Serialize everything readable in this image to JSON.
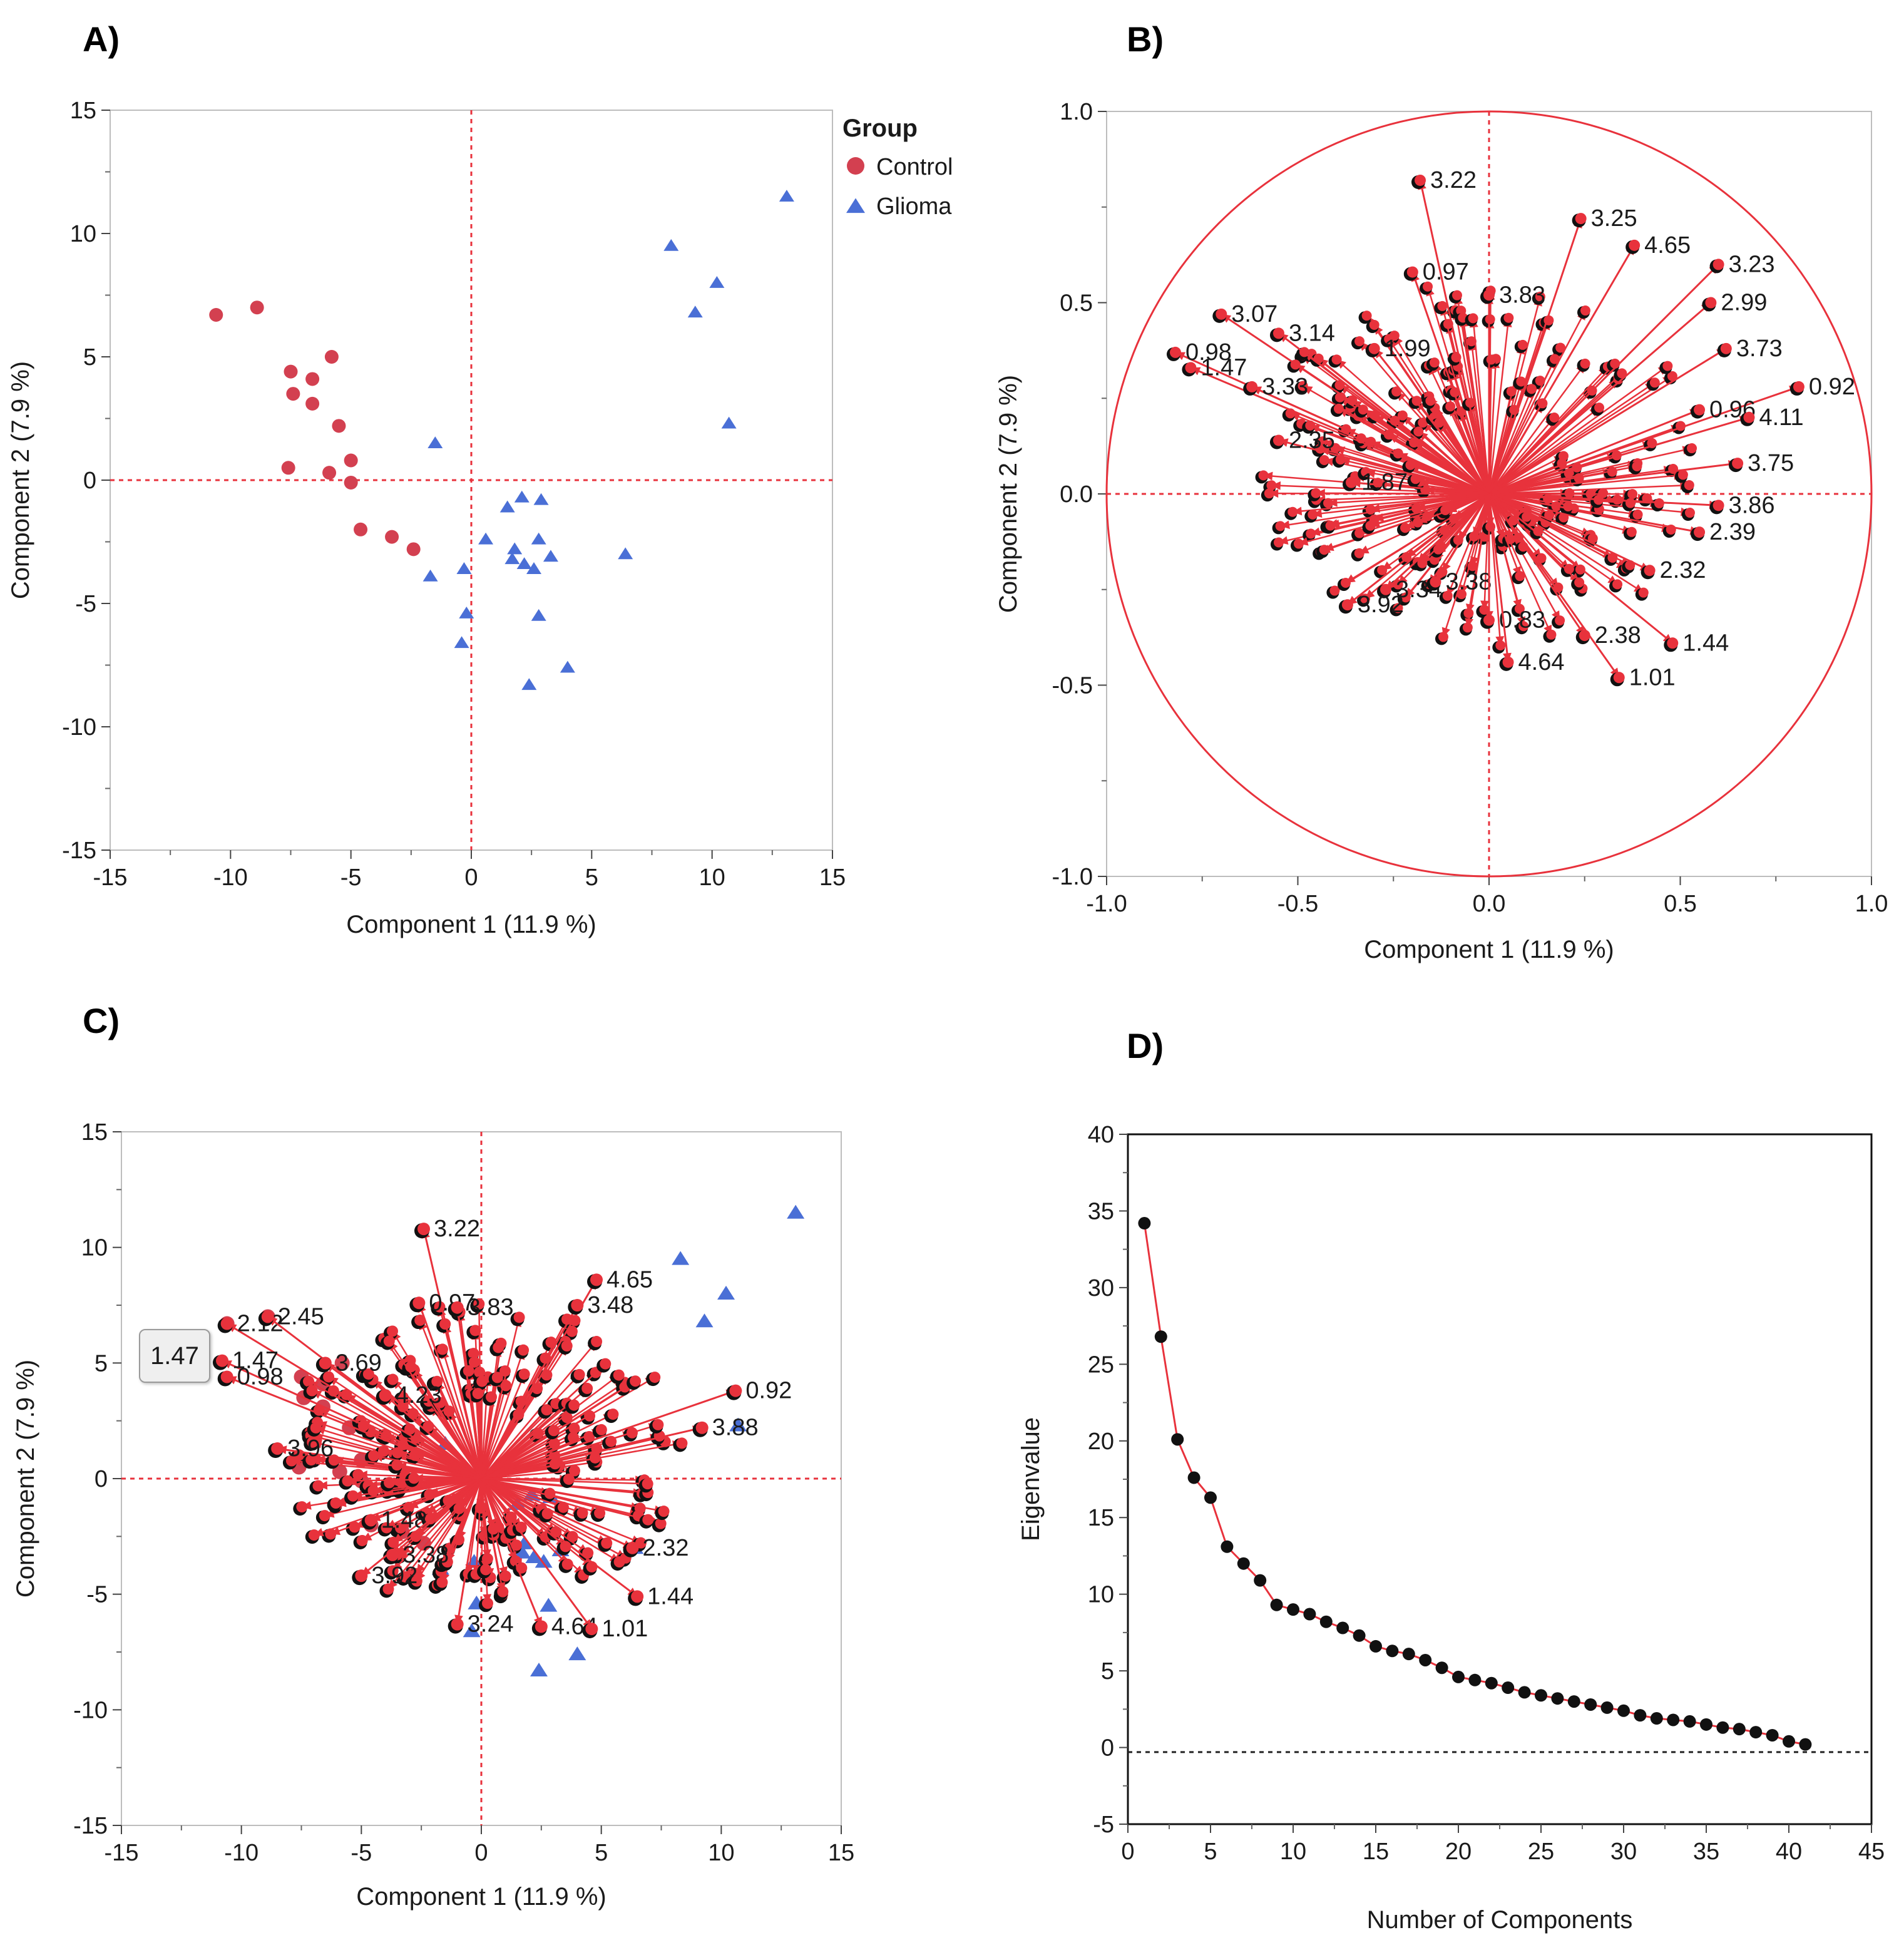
{
  "panels": {
    "a": {
      "letter": "A)"
    },
    "b": {
      "letter": "B)"
    },
    "c": {
      "letter": "C)"
    },
    "d": {
      "letter": "D)"
    }
  },
  "colors": {
    "control": "#d34050",
    "glioma": "#4a6fd6",
    "loading_arrow": "#e8323c",
    "loading_dot": "#111111",
    "refline": "#e8323c",
    "circle": "#e8323c",
    "scree_line": "#e8323c",
    "scree_dot": "#111111"
  },
  "tooltip": {
    "text": "1.47"
  },
  "chart_data": [
    {
      "id": "score_plot",
      "type": "scatter",
      "title": "",
      "xlabel": "Component 1  (11.9 %)",
      "ylabel": "Component 2  (7.9 %)",
      "xlim": [
        -15,
        15
      ],
      "ylim": [
        -15,
        15
      ],
      "xticks": [
        -15,
        -10,
        -5,
        0,
        5,
        10,
        15
      ],
      "yticks": [
        15,
        10,
        5,
        0,
        -5,
        -10,
        -15
      ],
      "legend": {
        "title": "Group",
        "position": "right",
        "entries": [
          "Control",
          "Glioma"
        ]
      },
      "series": [
        {
          "name": "Control",
          "marker": "circle",
          "x": [
            -10.6,
            -8.9,
            -7.5,
            -7.4,
            -6.6,
            -6.6,
            -5.8,
            -5.5,
            -7.6,
            -5.9,
            -5.0,
            -5.0,
            -4.6,
            -3.3,
            -2.4
          ],
          "y": [
            6.7,
            7.0,
            4.4,
            3.5,
            4.1,
            3.1,
            5.0,
            2.2,
            0.5,
            0.3,
            0.8,
            -0.1,
            -2.0,
            -2.3,
            -2.8
          ]
        },
        {
          "name": "Glioma",
          "marker": "triangle",
          "x": [
            13.1,
            8.3,
            10.2,
            9.3,
            10.7,
            -1.5,
            1.5,
            2.1,
            2.9,
            0.6,
            1.8,
            2.8,
            1.7,
            2.2,
            2.6,
            3.3,
            6.4,
            -1.7,
            -0.3,
            -0.2,
            2.8,
            -0.4,
            4.0,
            2.4
          ],
          "y": [
            11.5,
            9.5,
            8.0,
            6.8,
            2.3,
            1.5,
            -1.1,
            -0.7,
            -0.8,
            -2.4,
            -2.8,
            -2.4,
            -3.2,
            -3.4,
            -3.6,
            -3.1,
            -3.0,
            -3.9,
            -3.6,
            -5.4,
            -5.5,
            -6.6,
            -7.6,
            -8.3
          ]
        }
      ]
    },
    {
      "id": "loading_plot",
      "type": "scatter",
      "title": "",
      "xlabel": "Component 1  (11.9 %)",
      "ylabel": "Component 2  (7.9 %)",
      "xlim": [
        -1.0,
        1.0
      ],
      "ylim": [
        -1.0,
        1.0
      ],
      "xticks": [
        "-1.0",
        "-0.5",
        "0.0",
        "0.5",
        "1.0"
      ],
      "yticks": [
        "1.0",
        "0.5",
        "0.0",
        "-0.5",
        "-1.0"
      ],
      "unit_circle": true,
      "labeled_loadings": [
        {
          "label": "3.22",
          "x": -0.18,
          "y": 0.82
        },
        {
          "label": "3.25",
          "x": 0.24,
          "y": 0.72
        },
        {
          "label": "4.65",
          "x": 0.38,
          "y": 0.65
        },
        {
          "label": "3.23",
          "x": 0.6,
          "y": 0.6
        },
        {
          "label": "0.97",
          "x": -0.2,
          "y": 0.58
        },
        {
          "label": "3.83",
          "x": 0.0,
          "y": 0.52
        },
        {
          "label": "2.99",
          "x": 0.58,
          "y": 0.5
        },
        {
          "label": "3.07",
          "x": -0.7,
          "y": 0.47
        },
        {
          "label": "3.14",
          "x": -0.55,
          "y": 0.42
        },
        {
          "label": "1.99",
          "x": -0.3,
          "y": 0.38
        },
        {
          "label": "0.98",
          "x": -0.82,
          "y": 0.37
        },
        {
          "label": "3.73",
          "x": 0.62,
          "y": 0.38
        },
        {
          "label": "1.47",
          "x": -0.78,
          "y": 0.33
        },
        {
          "label": "0.92",
          "x": 0.81,
          "y": 0.28
        },
        {
          "label": "3.33",
          "x": -0.62,
          "y": 0.28
        },
        {
          "label": "0.96",
          "x": 0.55,
          "y": 0.22
        },
        {
          "label": "4.11",
          "x": 0.68,
          "y": 0.2
        },
        {
          "label": "2.35",
          "x": -0.55,
          "y": 0.14
        },
        {
          "label": "3.75",
          "x": 0.65,
          "y": 0.08
        },
        {
          "label": "1.87",
          "x": -0.36,
          "y": 0.03
        },
        {
          "label": "3.86",
          "x": 0.6,
          "y": -0.03
        },
        {
          "label": "2.39",
          "x": 0.55,
          "y": -0.1
        },
        {
          "label": "2.32",
          "x": 0.42,
          "y": -0.2
        },
        {
          "label": "3.34",
          "x": -0.27,
          "y": -0.25
        },
        {
          "label": "3.38",
          "x": -0.14,
          "y": -0.23
        },
        {
          "label": "3.92",
          "x": -0.37,
          "y": -0.29
        },
        {
          "label": "0.83",
          "x": 0.0,
          "y": -0.33
        },
        {
          "label": "2.38",
          "x": 0.25,
          "y": -0.37
        },
        {
          "label": "1.44",
          "x": 0.48,
          "y": -0.39
        },
        {
          "label": "1.01",
          "x": 0.34,
          "y": -0.48
        },
        {
          "label": "4.64",
          "x": 0.05,
          "y": -0.44
        }
      ]
    },
    {
      "id": "biplot",
      "type": "scatter",
      "title": "",
      "xlabel": "Component 1  (11.9 %)",
      "ylabel": "Component 2  (7.9 %)",
      "xlim": [
        -15,
        15
      ],
      "ylim": [
        -15,
        15
      ],
      "xticks": [
        -15,
        -10,
        -5,
        0,
        5,
        10,
        15
      ],
      "yticks": [
        15,
        10,
        5,
        0,
        -5,
        -10,
        -15
      ],
      "labeled_loadings": [
        {
          "label": "3.22",
          "x": -2.4,
          "y": 10.8
        },
        {
          "label": "4.65",
          "x": 4.8,
          "y": 8.6
        },
        {
          "label": "2.12",
          "x": -10.6,
          "y": 6.7
        },
        {
          "label": "2.45",
          "x": -8.9,
          "y": 7.0
        },
        {
          "label": "0.97",
          "x": -2.6,
          "y": 7.6
        },
        {
          "label": "3.83",
          "x": -1.0,
          "y": 7.4
        },
        {
          "label": "3.48",
          "x": 4.0,
          "y": 7.5
        },
        {
          "label": "1.47",
          "x": -10.8,
          "y": 5.1
        },
        {
          "label": "3.69",
          "x": -6.5,
          "y": 5.0
        },
        {
          "label": "0.98",
          "x": -10.6,
          "y": 4.4
        },
        {
          "label": "4.23",
          "x": -4.0,
          "y": 3.6
        },
        {
          "label": "0.92",
          "x": 10.6,
          "y": 3.8
        },
        {
          "label": "3.88",
          "x": 9.2,
          "y": 2.2
        },
        {
          "label": "3.96",
          "x": -8.5,
          "y": 1.3
        },
        {
          "label": "1.48",
          "x": -4.6,
          "y": -1.8
        },
        {
          "label": "2.32",
          "x": 6.3,
          "y": -3.0
        },
        {
          "label": "3.38",
          "x": -3.7,
          "y": -3.3
        },
        {
          "label": "3.92",
          "x": -5.0,
          "y": -4.2
        },
        {
          "label": "1.44",
          "x": 6.5,
          "y": -5.1
        },
        {
          "label": "3.24",
          "x": -1.0,
          "y": -6.3
        },
        {
          "label": "4.64",
          "x": 2.5,
          "y": -6.4
        },
        {
          "label": "1.01",
          "x": 4.6,
          "y": -6.5
        }
      ]
    },
    {
      "id": "scree_plot",
      "type": "line",
      "title": "",
      "xlabel": "Number of Components",
      "ylabel": "Eigenvalue",
      "xlim": [
        0,
        45
      ],
      "ylim": [
        -5,
        40
      ],
      "xticks": [
        0,
        5,
        10,
        15,
        20,
        25,
        30,
        35,
        40,
        45
      ],
      "yticks": [
        40,
        35,
        30,
        25,
        20,
        15,
        10,
        5,
        0,
        -5
      ],
      "reference_line_y": -0.3,
      "x": [
        1,
        2,
        3,
        4,
        5,
        6,
        7,
        8,
        9,
        10,
        11,
        12,
        13,
        14,
        15,
        16,
        17,
        18,
        19,
        20,
        21,
        22,
        23,
        24,
        25,
        26,
        27,
        28,
        29,
        30,
        31,
        32,
        33,
        34,
        35,
        36,
        37,
        38,
        39,
        40,
        41
      ],
      "y": [
        34.2,
        26.8,
        20.1,
        17.6,
        16.3,
        13.1,
        12.0,
        10.9,
        9.3,
        9.0,
        8.7,
        8.2,
        7.8,
        7.3,
        6.6,
        6.3,
        6.1,
        5.7,
        5.2,
        4.6,
        4.4,
        4.2,
        3.9,
        3.6,
        3.4,
        3.2,
        3.0,
        2.8,
        2.6,
        2.4,
        2.1,
        1.9,
        1.8,
        1.7,
        1.5,
        1.3,
        1.2,
        1.0,
        0.8,
        0.4,
        0.2
      ]
    }
  ]
}
